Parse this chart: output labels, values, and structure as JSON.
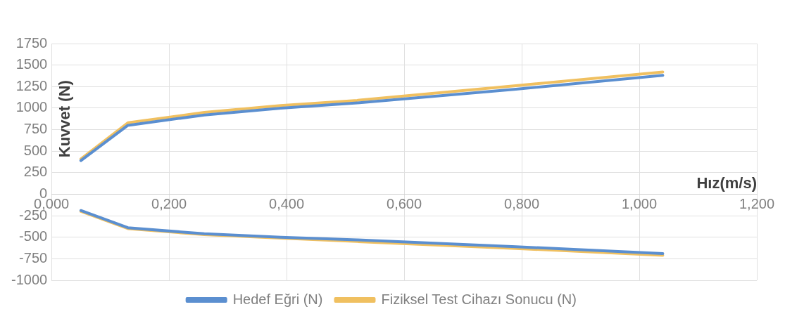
{
  "chart_data": {
    "type": "line",
    "xlabel": "Hız(m/s)",
    "ylabel": "Kuvvet (N)",
    "xlim": [
      0,
      1.2
    ],
    "xticks": [
      {
        "value": 0,
        "label": "0,000"
      },
      {
        "value": 0.2,
        "label": "0,200"
      },
      {
        "value": 0.4,
        "label": "0,400"
      },
      {
        "value": 0.6,
        "label": "0,600"
      },
      {
        "value": 0.8,
        "label": "0,800"
      },
      {
        "value": 1,
        "label": "1,000"
      },
      {
        "value": 1.2,
        "label": "1,200"
      }
    ],
    "ylim": [
      -1000,
      1750
    ],
    "yticks": [
      -1000,
      -750,
      -500,
      -250,
      0,
      250,
      500,
      750,
      1000,
      1250,
      1500,
      1750
    ],
    "grid": true,
    "legend": "bottom",
    "marker": "none",
    "line_style": "solid",
    "series": [
      {
        "name": "Hedef Eğri (N)",
        "color": "#5b8fd0",
        "x": [
          0.05,
          0.13,
          0.26,
          0.39,
          0.52,
          0.79,
          1.04,
          null,
          0.05,
          0.13,
          0.26,
          0.39,
          0.52,
          0.79,
          1.04
        ],
        "values": [
          390,
          800,
          920,
          1000,
          1060,
          1220,
          1380,
          null,
          -190,
          -390,
          -460,
          -500,
          -530,
          -610,
          -690
        ]
      },
      {
        "name": "Fiziksel Test Cihazı Sonucu (N)",
        "color": "#f0c060",
        "x": [
          0.05,
          0.13,
          0.26,
          0.39,
          0.52,
          0.79,
          1.04,
          null,
          0.05,
          0.13,
          0.26,
          0.39,
          0.52,
          0.79,
          1.04
        ],
        "values": [
          410,
          830,
          950,
          1030,
          1090,
          1260,
          1420,
          null,
          -200,
          -400,
          -470,
          -510,
          -550,
          -630,
          -710
        ]
      }
    ]
  }
}
